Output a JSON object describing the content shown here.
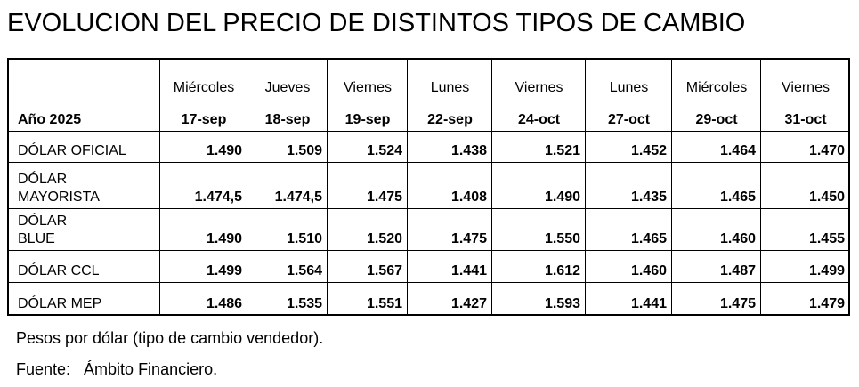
{
  "title": "EVOLUCION DEL PRECIO DE DISTINTOS TIPOS DE CAMBIO",
  "table": {
    "weekdays": [
      "Miércoles",
      "Jueves",
      "Viernes",
      "Lunes",
      "Viernes",
      "Lunes",
      "Miércoles",
      "Viernes"
    ],
    "corner": "Año 2025",
    "dates": [
      "17-sep",
      "18-sep",
      "19-sep",
      "22-sep",
      "24-oct",
      "27-oct",
      "29-oct",
      "31-oct"
    ],
    "rows": [
      {
        "label": "DÓLAR OFICIAL",
        "values": [
          "1.490",
          "1.509",
          "1.524",
          "1.438",
          "1.521",
          "1.452",
          "1.464",
          "1.470"
        ]
      },
      {
        "label": "DÓLAR MAYORISTA",
        "values": [
          "1.474,5",
          "1.474,5",
          "1.475",
          "1.408",
          "1.490",
          "1.435",
          "1.465",
          "1.450"
        ]
      },
      {
        "label": "DÓLAR BLUE",
        "values": [
          "1.490",
          "1.510",
          "1.520",
          "1.475",
          "1.550",
          "1.465",
          "1.460",
          "1.455"
        ]
      },
      {
        "label": "DÓLAR CCL",
        "values": [
          "1.499",
          "1.564",
          "1.567",
          "1.441",
          "1.612",
          "1.460",
          "1.487",
          "1.499"
        ]
      },
      {
        "label": "DÓLAR MEP",
        "values": [
          "1.486",
          "1.535",
          "1.551",
          "1.427",
          "1.593",
          "1.441",
          "1.475",
          "1.479"
        ]
      }
    ]
  },
  "notes": [
    "Pesos por dólar (tipo de cambio vendedor).",
    "Fuente:   Ámbito Financiero."
  ]
}
